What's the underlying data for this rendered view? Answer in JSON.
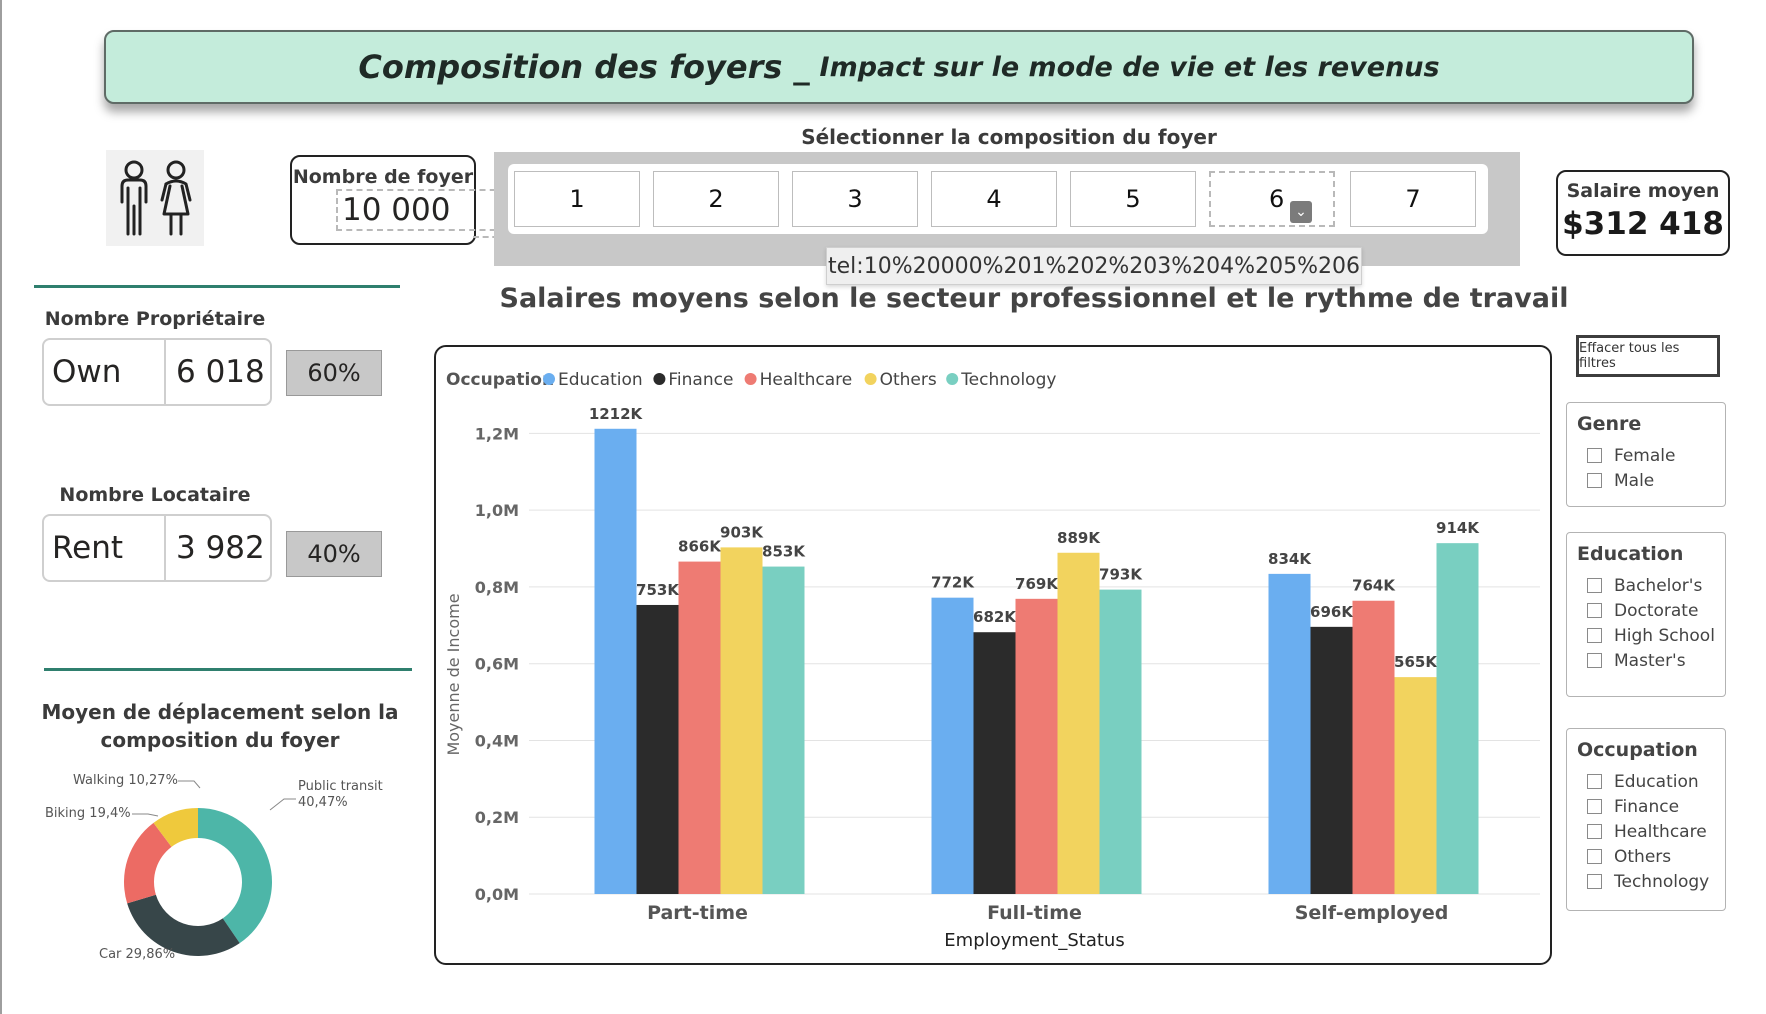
{
  "banner": {
    "title": "Composition des foyers _",
    "subtitle": "Impact sur le mode de vie et les revenus"
  },
  "foyer": {
    "label": "Nombre de foyer",
    "value": "10 000"
  },
  "slicer": {
    "title": "Sélectionner la composition du foyer",
    "options": [
      "1",
      "2",
      "3",
      "4",
      "5",
      "6",
      "7"
    ],
    "tooltip": "tel:10%20000%201%202%203%204%205%206"
  },
  "salaire": {
    "label": "Salaire moyen",
    "value": "$312 418"
  },
  "proprietaire": {
    "label": "Nombre Propriétaire",
    "key": "Own",
    "value": "6 018",
    "pct": "60%"
  },
  "locataire": {
    "label": "Nombre Locataire",
    "key": "Rent",
    "value": "3 982",
    "pct": "40%"
  },
  "donut": {
    "title_line1": "Moyen de déplacement selon la",
    "title_line2": "composition du foyer",
    "labels": {
      "walking": "Walking 10,27%",
      "biking": "Biking 19,4%",
      "public_line1": "Public transit",
      "public_line2": "40,47%",
      "car": "Car 29,86%"
    },
    "slices": [
      {
        "name": "Public transit",
        "value": 40.47,
        "color": "#4db6a8"
      },
      {
        "name": "Car",
        "value": 29.86,
        "color": "#374649"
      },
      {
        "name": "Biking",
        "value": 19.4,
        "color": "#ec6b64"
      },
      {
        "name": "Walking",
        "value": 10.27,
        "color": "#efc93c"
      }
    ]
  },
  "chart_title": "Salaires moyens selon le secteur professionnel et le rythme de travail",
  "chart_data": {
    "type": "bar",
    "legend_title": "Occupation",
    "categories": [
      "Part-time",
      "Full-time",
      "Self-employed"
    ],
    "series": [
      {
        "name": "Education",
        "color": "#6aaef0",
        "values": [
          1212,
          772,
          834
        ],
        "labels": [
          "1212K",
          "772K",
          "834K"
        ]
      },
      {
        "name": "Finance",
        "color": "#2b2b2b",
        "values": [
          753,
          682,
          696
        ],
        "labels": [
          "753K",
          "682K",
          "696K"
        ]
      },
      {
        "name": "Healthcare",
        "color": "#ee7b73",
        "values": [
          866,
          769,
          764
        ],
        "labels": [
          "866K",
          "769K",
          "764K"
        ]
      },
      {
        "name": "Others",
        "color": "#f2d35e",
        "values": [
          903,
          889,
          565
        ],
        "labels": [
          "903K",
          "889K",
          "565K"
        ]
      },
      {
        "name": "Technology",
        "color": "#79cfc1",
        "values": [
          853,
          793,
          914
        ],
        "labels": [
          "853K",
          "793K",
          "914K"
        ]
      }
    ],
    "value_unit": "K",
    "ylim": [
      0,
      1300
    ],
    "yticks": [
      0,
      200,
      400,
      600,
      800,
      1000,
      1200
    ],
    "ytick_labels": [
      "0,0M",
      "0,2M",
      "0,4M",
      "0,6M",
      "0,8M",
      "1,0M",
      "1,2M"
    ],
    "xlabel": "Employment_Status",
    "ylabel": "Moyenne de Income",
    "grid": true
  },
  "clear_filters": "Effacer tous les filtres",
  "filters": {
    "genre": {
      "title": "Genre",
      "options": [
        "Female",
        "Male"
      ]
    },
    "education": {
      "title": "Education",
      "options": [
        "Bachelor's",
        "Doctorate",
        "High School",
        "Master's"
      ]
    },
    "occupation": {
      "title": "Occupation",
      "options": [
        "Education",
        "Finance",
        "Healthcare",
        "Others",
        "Technology"
      ]
    }
  }
}
